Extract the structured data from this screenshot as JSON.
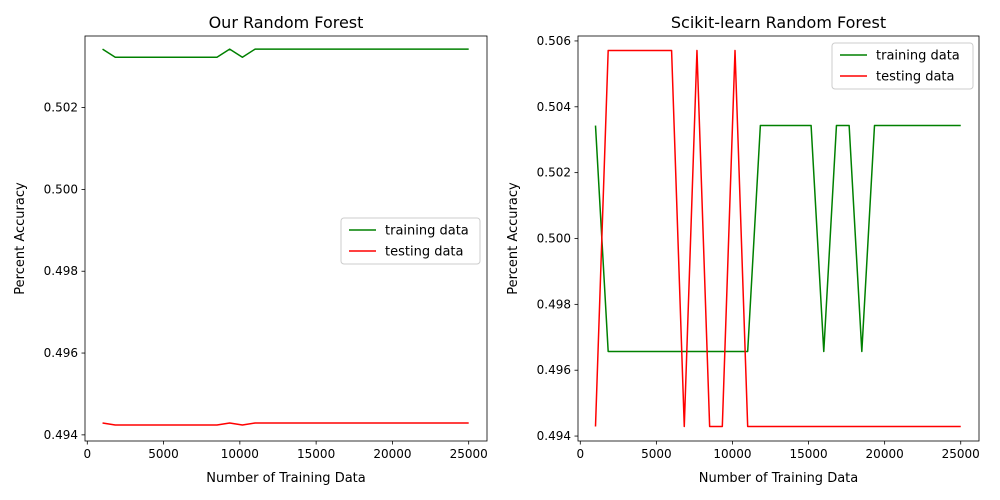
{
  "chart_data": [
    {
      "type": "line",
      "title": "Our Random Forest",
      "xlabel": "Number of Training Data",
      "ylabel": "Percent Accuracy",
      "xlim": [
        -150,
        26200
      ],
      "ylim": [
        0.49385,
        0.50375
      ],
      "xticks": [
        0,
        5000,
        10000,
        15000,
        20000,
        25000
      ],
      "yticks": [
        0.494,
        0.496,
        0.498,
        0.5,
        0.502
      ],
      "ytick_decimals": 3,
      "legend_position": "center-right",
      "x": [
        1000,
        1833,
        2667,
        3500,
        4333,
        5167,
        6000,
        6833,
        7667,
        8500,
        9333,
        10167,
        11000,
        11833,
        12667,
        13500,
        14333,
        15167,
        16000,
        16833,
        17667,
        18500,
        19333,
        20167,
        21000,
        21833,
        22667,
        23500,
        24333,
        25000
      ],
      "series": [
        {
          "name": "training data",
          "color": "#008000",
          "values": [
            0.50343,
            0.50323,
            0.50323,
            0.50323,
            0.50323,
            0.50323,
            0.50323,
            0.50323,
            0.50323,
            0.50323,
            0.50343,
            0.50323,
            0.50343,
            0.50343,
            0.50343,
            0.50343,
            0.50343,
            0.50343,
            0.50343,
            0.50343,
            0.50343,
            0.50343,
            0.50343,
            0.50343,
            0.50343,
            0.50343,
            0.50343,
            0.50343,
            0.50343,
            0.50343
          ]
        },
        {
          "name": "testing data",
          "color": "#ff0000",
          "values": [
            0.49429,
            0.49424,
            0.49424,
            0.49424,
            0.49424,
            0.49424,
            0.49424,
            0.49424,
            0.49424,
            0.49424,
            0.49429,
            0.49424,
            0.49429,
            0.49429,
            0.49429,
            0.49429,
            0.49429,
            0.49429,
            0.49429,
            0.49429,
            0.49429,
            0.49429,
            0.49429,
            0.49429,
            0.49429,
            0.49429,
            0.49429,
            0.49429,
            0.49429,
            0.49429
          ]
        }
      ]
    },
    {
      "type": "line",
      "title": "Scikit-learn Random Forest",
      "xlabel": "Number of Training Data",
      "ylabel": "Percent Accuracy",
      "xlim": [
        -150,
        26200
      ],
      "ylim": [
        0.49385,
        0.50615
      ],
      "xticks": [
        0,
        5000,
        10000,
        15000,
        20000,
        25000
      ],
      "yticks": [
        0.494,
        0.496,
        0.498,
        0.5,
        0.502,
        0.504,
        0.506
      ],
      "ytick_decimals": 3,
      "legend_position": "upper-right",
      "x": [
        1000,
        1833,
        2667,
        3500,
        4333,
        5167,
        6000,
        6833,
        7667,
        8500,
        9333,
        10167,
        11000,
        11833,
        12667,
        13500,
        14333,
        15167,
        16000,
        16833,
        17667,
        18500,
        19333,
        20167,
        21000,
        21833,
        22667,
        23500,
        24333,
        25000
      ],
      "series": [
        {
          "name": "training data",
          "color": "#008000",
          "values": [
            0.50343,
            0.49657,
            0.49657,
            0.49657,
            0.49657,
            0.49657,
            0.49657,
            0.49657,
            0.49657,
            0.49657,
            0.49657,
            0.49657,
            0.49657,
            0.50343,
            0.50343,
            0.50343,
            0.50343,
            0.50343,
            0.49657,
            0.50343,
            0.50343,
            0.49657,
            0.50343,
            0.50343,
            0.50343,
            0.50343,
            0.50343,
            0.50343,
            0.50343,
            0.50343
          ]
        },
        {
          "name": "testing data",
          "color": "#ff0000",
          "values": [
            0.49429,
            0.50571,
            0.50571,
            0.50571,
            0.50571,
            0.50571,
            0.50571,
            0.49429,
            0.50571,
            0.49429,
            0.49429,
            0.50571,
            0.49429,
            0.49429,
            0.49429,
            0.49429,
            0.49429,
            0.49429,
            0.49429,
            0.49429,
            0.49429,
            0.49429,
            0.49429,
            0.49429,
            0.49429,
            0.49429,
            0.49429,
            0.49429,
            0.49429,
            0.49429
          ]
        }
      ]
    }
  ]
}
